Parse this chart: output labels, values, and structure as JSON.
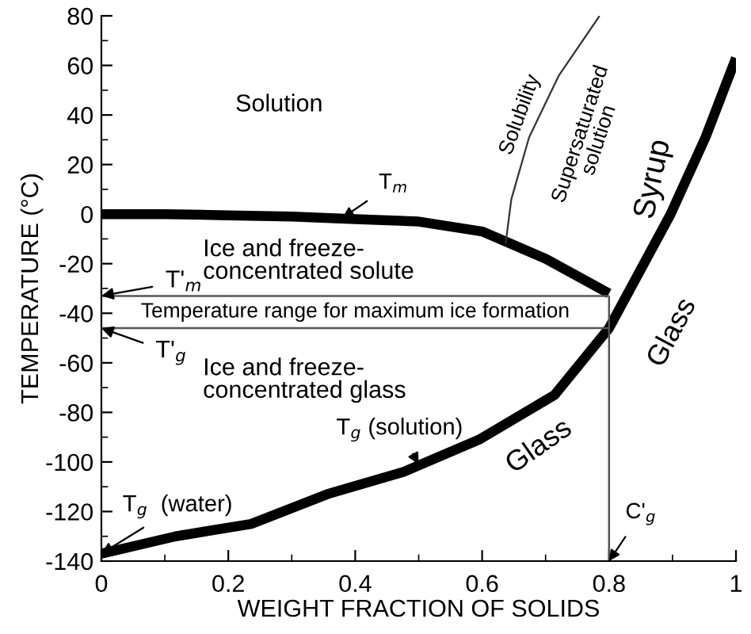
{
  "chart_data": {
    "type": "line",
    "xlabel": "WEIGHT FRACTION OF SOLIDS",
    "ylabel": "TEMPERATURE (°C)",
    "xlim": [
      0,
      1
    ],
    "ylim": [
      -140,
      80
    ],
    "xticks": [
      0,
      0.2,
      0.4,
      0.6,
      0.8,
      1
    ],
    "yticks": [
      -140,
      -120,
      -100,
      -80,
      -60,
      -40,
      -20,
      0,
      20,
      40,
      60,
      80
    ],
    "grid": false,
    "legend": false,
    "marker": "none",
    "series": [
      {
        "color": "#000000",
        "x": [
          0,
          0.1,
          0.2,
          0.3,
          0.4,
          0.5,
          0.6,
          0.7,
          0.8
        ],
        "values": [
          0,
          0,
          -0.5,
          -1,
          -2,
          -3,
          -7,
          -18,
          -32
        ]
      },
      {
        "color": "#000000",
        "x": [
          0,
          0.117,
          0.236,
          0.356,
          0.476,
          0.595,
          0.714,
          0.8,
          0.897,
          0.952,
          1
        ],
        "values": [
          -137,
          -130,
          -125,
          -113,
          -104,
          -91,
          -73,
          -46,
          0,
          31,
          63
        ]
      },
      {
        "color": "#333333",
        "x": [
          0.637,
          0.646,
          0.674,
          0.721,
          0.785
        ],
        "values": [
          -12,
          6,
          31,
          56,
          80
        ]
      },
      {
        "color": "#555555",
        "x": [
          0,
          0.8
        ],
        "values": [
          -33,
          -33
        ]
      },
      {
        "color": "#555555",
        "x": [
          0,
          0.8
        ],
        "values": [
          -46,
          -46
        ]
      },
      {
        "color": "#555555",
        "x": [
          0.8,
          0.8
        ],
        "values": [
          -140,
          -33
        ]
      }
    ],
    "annotations": [
      "Solution",
      {
        "text": "T$_{m}$",
        "x": 0.38,
        "y": -1.5
      },
      "Ice and freeze-\nconcentrated solute",
      "Temperature range for maximum ice formation",
      {
        "text": "T'$_{m}$",
        "x": 0,
        "y": -33
      },
      {
        "text": "T'$_{g}$",
        "x": 0,
        "y": -46
      },
      "Ice and freeze-\nconcentrated glass",
      {
        "text": "T$_{g}$ (solution)",
        "x": 0.5,
        "y": -101
      },
      {
        "text": "T$_{g}$  (water)",
        "x": 0,
        "y": -137
      },
      {
        "text": "C'$_{g}$",
        "x": 0.8,
        "y": -140
      },
      "Glass",
      "Glass",
      "Syrup",
      "Supersaturated\nsolution",
      "Solubility"
    ]
  }
}
